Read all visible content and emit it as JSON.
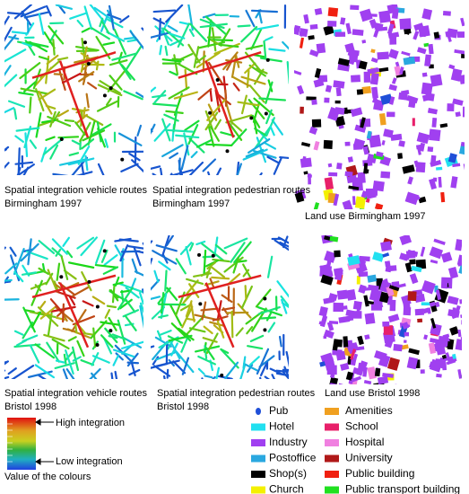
{
  "panels": [
    {
      "caption": [
        "Spatial integration vehicle routes",
        "Birmingham 1997"
      ]
    },
    {
      "caption": [
        "Spatial integration pedestrian routes",
        "Birmingham 1997"
      ]
    },
    {
      "caption": [
        "Land use Birmingham 1997"
      ]
    },
    {
      "caption": [
        "Spatial integration vehicle routes",
        "Bristol 1998"
      ]
    },
    {
      "caption": [
        "Spatial integration pedestrian routes",
        "Bristol 1998"
      ]
    },
    {
      "caption": [
        "Land use Bristol 1998"
      ]
    }
  ],
  "color_scale": {
    "high": "High integration",
    "low": "Low integration",
    "title": "Value of the colours"
  },
  "land_use_legend": [
    {
      "label": "Pub",
      "color": "#1f4fd8"
    },
    {
      "label": "Hotel",
      "color": "#22e0f0"
    },
    {
      "label": "Industry",
      "color": "#a040f0"
    },
    {
      "label": "Postoffice",
      "color": "#2aa8e0"
    },
    {
      "label": "Shop(s)",
      "color": "#000000"
    },
    {
      "label": "Church",
      "color": "#f4f000"
    },
    {
      "label": "Amenities",
      "color": "#f0a020"
    },
    {
      "label": "School",
      "color": "#e8206a"
    },
    {
      "label": "Hospital",
      "color": "#f080e0"
    },
    {
      "label": "University",
      "color": "#b01818"
    },
    {
      "label": "Public building",
      "color": "#f02010"
    },
    {
      "label": "Public transport building",
      "color": "#20e020"
    }
  ]
}
